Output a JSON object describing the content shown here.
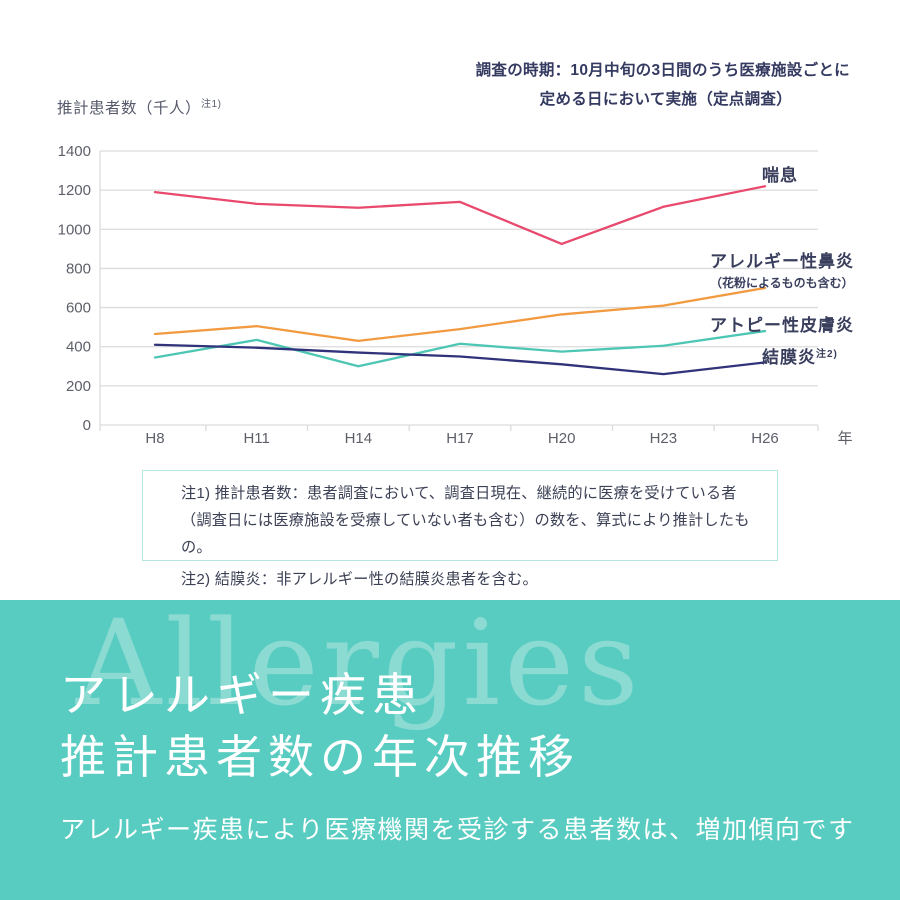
{
  "annotation": {
    "line1": "調査の時期：10月中旬の3日間のうち医療施設ごとに",
    "line2": "定める日において実施（定点調査）"
  },
  "y_axis_title": {
    "text": "推計患者数（千人）",
    "note_ref": "注1)"
  },
  "chart_data": {
    "type": "line",
    "categories": [
      "H8",
      "H11",
      "H14",
      "H17",
      "H20",
      "H23",
      "H26"
    ],
    "xlabel": "年",
    "ylabel": "推計患者数（千人）",
    "ylim": [
      0,
      1400
    ],
    "ytick_step": 200,
    "grid": true,
    "legend_position": "right-of-line-ends",
    "series": [
      {
        "id": "asthma",
        "label": "喘息",
        "color": "#e8496d",
        "values": [
          1190,
          1130,
          1110,
          1140,
          925,
          1115,
          1220
        ]
      },
      {
        "id": "allergic-rhinitis",
        "label": "アレルギー性鼻炎",
        "sublabel": "（花粉によるものも含む）",
        "color": "#f19a40",
        "values": [
          465,
          505,
          430,
          490,
          565,
          610,
          700
        ]
      },
      {
        "id": "atopic-dermatitis",
        "label": "アトピー性皮膚炎",
        "color": "#4dc6b4",
        "values": [
          345,
          435,
          300,
          415,
          375,
          405,
          480
        ]
      },
      {
        "id": "conjunctivitis",
        "label": "結膜炎",
        "note_ref": "注2)",
        "color": "#30337a",
        "values": [
          410,
          395,
          370,
          350,
          310,
          260,
          320
        ]
      }
    ]
  },
  "notes": {
    "note1_line1": "注1) 推計患者数：患者調査において、調査日現在、継続的に医療を受けている者",
    "note1_line2": "（調査日には医療施設を受療していない者も含む）の数を、算式により推計したもの。",
    "note2": "注2) 結膜炎：非アレルギー性の結膜炎患者を含む。"
  },
  "footer": {
    "watermark": "Allergies",
    "title_line1": "アレルギー疾患",
    "title_line2": "推計患者数の年次推移",
    "subtitle": "アレルギー疾患により医療機関を受診する患者数は、増加傾向です",
    "background_color": "#59ccc1"
  },
  "colors": {
    "text_navy": "#343a60",
    "axis_text": "#5d6069",
    "gridline": "#dcdcdc",
    "notes_border": "#b5e6e0"
  }
}
